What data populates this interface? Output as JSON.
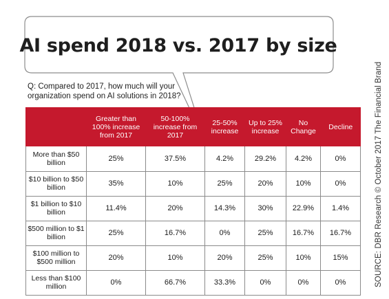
{
  "title": "AI spend 2018 vs. 2017 by size",
  "question": "Q: Compared to 2017, how much will your organization spend on AI solutions in 2018?",
  "source": "SOURCE: DBR Research © October 2017 The Financial Brand",
  "colors": {
    "header_bg": "#c5192d",
    "header_text": "#ffffff",
    "grid_line": "#8a8a8a"
  },
  "chart_data": {
    "type": "table",
    "title": "AI spend 2018 vs. 2017 by size",
    "columns": [
      "",
      "Greater than 100% increase from 2017",
      "50-100% increase from 2017",
      "25-50% increase",
      "Up to 25% increase",
      "No Change",
      "Decline"
    ],
    "rows": [
      {
        "label": "More than $50 billion",
        "values": [
          "25%",
          "37.5%",
          "4.2%",
          "29.2%",
          "4.2%",
          "0%"
        ]
      },
      {
        "label": "$10 billion to $50 billion",
        "values": [
          "35%",
          "10%",
          "25%",
          "20%",
          "10%",
          "0%"
        ]
      },
      {
        "label": "$1 billion to $10 billion",
        "values": [
          "11.4%",
          "20%",
          "14.3%",
          "30%",
          "22.9%",
          "1.4%"
        ]
      },
      {
        "label": "$500 million to $1 billion",
        "values": [
          "25%",
          "16.7%",
          "0%",
          "25%",
          "16.7%",
          "16.7%"
        ]
      },
      {
        "label": "$100 million to $500 million",
        "values": [
          "20%",
          "10%",
          "20%",
          "25%",
          "10%",
          "15%"
        ]
      },
      {
        "label": "Less than $100 million",
        "values": [
          "0%",
          "66.7%",
          "33.3%",
          "0%",
          "0%",
          "0%"
        ]
      }
    ]
  }
}
